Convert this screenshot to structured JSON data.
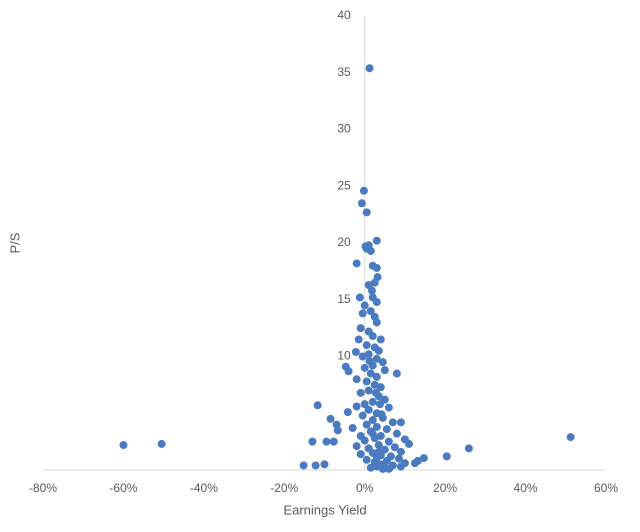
{
  "chart_data": {
    "type": "scatter",
    "xlabel": "Earnings Yield",
    "ylabel": "P/S",
    "color": "#4a7bc0",
    "xlim": [
      -80,
      60
    ],
    "xticks": [
      {
        "value": -80,
        "label": "-80%"
      },
      {
        "value": -60,
        "label": "-60%"
      },
      {
        "value": -40,
        "label": "-40%"
      },
      {
        "value": -20,
        "label": "-20%"
      },
      {
        "value": 0,
        "label": "0%"
      },
      {
        "value": 20,
        "label": "20%"
      },
      {
        "value": 40,
        "label": "40%"
      },
      {
        "value": 60,
        "label": "60%"
      }
    ],
    "ylim": [
      0,
      40
    ],
    "yticks": [
      10,
      15,
      20,
      25,
      30,
      35,
      40
    ],
    "grid": false,
    "x": [
      -60,
      -50.5,
      51.2,
      25.9,
      20.4,
      14.7,
      13.2,
      -15.2,
      -12.2,
      -10,
      -13,
      -11.7,
      -9.5,
      -7.7,
      -8.5,
      -7,
      -6.7,
      -4.2,
      -4.7,
      -4,
      -2.2,
      -2,
      -1.2,
      -0.7,
      -0.2,
      0.5,
      1.2,
      3,
      0.2,
      0.5,
      1,
      1.5,
      2,
      3,
      3.2,
      2.5,
      1,
      1.8,
      2,
      3,
      0,
      1.5,
      2.5,
      -0.5,
      3,
      -1,
      1,
      2,
      4,
      -1.5,
      0.5,
      2.5,
      3.5,
      1,
      -0.5,
      3,
      4.5,
      2,
      0,
      5,
      8,
      1.5,
      3,
      -2,
      0.5,
      2.5,
      4,
      1,
      -1,
      3.5,
      5,
      2,
      0,
      -2,
      6,
      1,
      3,
      -0.5,
      4.5,
      2,
      7,
      9,
      0.5,
      3,
      -3,
      5.5,
      1.5,
      8,
      -1,
      4,
      2.5,
      10,
      0,
      6,
      11,
      3.5,
      -2,
      7.5,
      1,
      5,
      9,
      2,
      -1,
      4,
      6.5,
      3,
      8.5,
      0.5,
      5.5,
      2.5,
      10,
      4,
      7,
      3,
      1.5,
      5,
      9,
      4.5,
      12.5,
      6,
      3.5,
      2,
      4.2,
      3.8,
      2.8,
      1.2
    ],
    "y": [
      2.2,
      2.3,
      2.9,
      1.9,
      1.2,
      1.05,
      0.8,
      0.4,
      0.4,
      0.5,
      2.5,
      5.7,
      2.5,
      2.5,
      4.5,
      4,
      3.5,
      5.1,
      9.1,
      8.7,
      10.4,
      18.2,
      15.2,
      23.5,
      24.6,
      22.7,
      35.4,
      20.2,
      19.7,
      19.5,
      19.8,
      19.3,
      18,
      17.8,
      17,
      16.5,
      16.3,
      15.8,
      15.2,
      14.8,
      14.5,
      14,
      13.5,
      13.8,
      13,
      12.5,
      12.2,
      11.8,
      11.5,
      11.5,
      11,
      10.8,
      10.5,
      10.2,
      10,
      9.8,
      9.5,
      9.2,
      9,
      8.8,
      8.5,
      8.5,
      8.2,
      8,
      7.8,
      7.5,
      7.3,
      7,
      6.8,
      6.5,
      6.2,
      6,
      5.8,
      5.6,
      5.5,
      5.3,
      5,
      4.8,
      4.6,
      4.4,
      4.2,
      4.2,
      4,
      3.8,
      3.7,
      3.6,
      3.4,
      3.2,
      3,
      3,
      2.8,
      2.7,
      2.6,
      2.5,
      2.3,
      2.2,
      2.1,
      2,
      1.9,
      1.8,
      1.6,
      1.5,
      1.4,
      1.3,
      1.2,
      1.1,
      1.0,
      0.9,
      0.8,
      0.7,
      0.6,
      0.5,
      0.4,
      0.3,
      0.2,
      0.2,
      0.3,
      0.1,
      0.6,
      0.1,
      1.6,
      3.2,
      4.9,
      5.8,
      6.8,
      9.6
    ]
  }
}
